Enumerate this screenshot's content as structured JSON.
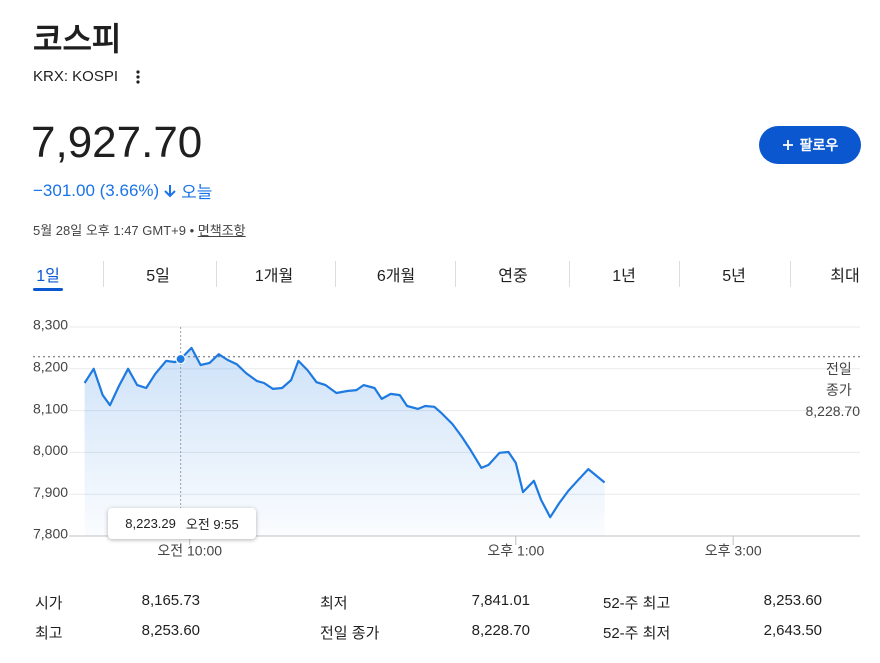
{
  "header": {
    "title": "코스피",
    "ticker": "KRX: KOSPI",
    "price": "7,927.70",
    "change": "−301.00 (3.66%)",
    "change_period": "오늘",
    "timestamp": "5월 28일 오후 1:47 GMT+9 •",
    "disclaimer": "면책조항",
    "follow_button": "팔로우"
  },
  "tabs": {
    "items": [
      "1일",
      "5일",
      "1개월",
      "6개월",
      "연중",
      "1년",
      "5년",
      "최대"
    ],
    "active": 0
  },
  "chart_data": {
    "type": "line",
    "x": [
      542,
      547,
      552,
      556,
      561,
      566,
      571,
      576,
      581,
      587,
      592,
      595,
      601,
      606,
      611,
      616,
      621,
      626,
      631,
      637,
      641,
      646,
      651,
      656,
      660,
      665,
      670,
      675,
      681,
      687,
      692,
      696,
      702,
      706,
      711,
      716,
      720,
      726,
      730,
      735,
      739,
      745,
      750,
      755,
      761,
      765,
      771,
      776,
      780,
      784,
      790,
      794,
      799,
      804,
      809,
      814,
      820,
      829
    ],
    "series": [
      {
        "name": "코스피",
        "color": "#1e7ae0",
        "values": [
          8166,
          8200,
          8137,
          8113,
          8159,
          8200,
          8161,
          8154,
          8188,
          8219,
          8216,
          8223.29,
          8250,
          8209,
          8214,
          8235,
          8221,
          8211,
          8190,
          8171,
          8166,
          8152,
          8154,
          8173,
          8219,
          8197,
          8168,
          8161,
          8142,
          8147,
          8149,
          8161,
          8154,
          8128,
          8140,
          8137,
          8111,
          8104,
          8111,
          8109,
          8094,
          8068,
          8039,
          8006,
          7963,
          7970,
          7999,
          8001,
          7975,
          7905,
          7932,
          7886,
          7845,
          7879,
          7908,
          7932,
          7960,
          7928
        ]
      }
    ],
    "xlim": [
      540,
      970
    ],
    "xticks": [
      {
        "value": 600,
        "label": "오전 10:00"
      },
      {
        "value": 780,
        "label": "오후 1:00"
      },
      {
        "value": 900,
        "label": "오후 3:00"
      }
    ],
    "ylim": [
      7800,
      8300
    ],
    "yticks": [
      {
        "value": 7800,
        "label": "7,800"
      },
      {
        "value": 7900,
        "label": "7,900"
      },
      {
        "value": 8000,
        "label": "8,000"
      },
      {
        "value": 8100,
        "label": "8,100"
      },
      {
        "value": 8200,
        "label": "8,200"
      },
      {
        "value": 8300,
        "label": "8,300"
      }
    ],
    "grid": true,
    "reference_line": {
      "value": 8228.7,
      "label": "전일 종가",
      "value_label": "8,228.70"
    },
    "tooltip": {
      "x": 595,
      "value": 8223.29,
      "value_label": "8,223.29",
      "time_label": "오전 9:55"
    }
  },
  "stats": [
    {
      "label": "시가",
      "value": "8,165.73"
    },
    {
      "label": "최저",
      "value": "7,841.01"
    },
    {
      "label": "52-주 최고",
      "value": "8,253.60"
    },
    {
      "label": "최고",
      "value": "8,253.60"
    },
    {
      "label": "전일 종가",
      "value": "8,228.70"
    },
    {
      "label": "52-주 최저",
      "value": "2,643.50"
    }
  ]
}
